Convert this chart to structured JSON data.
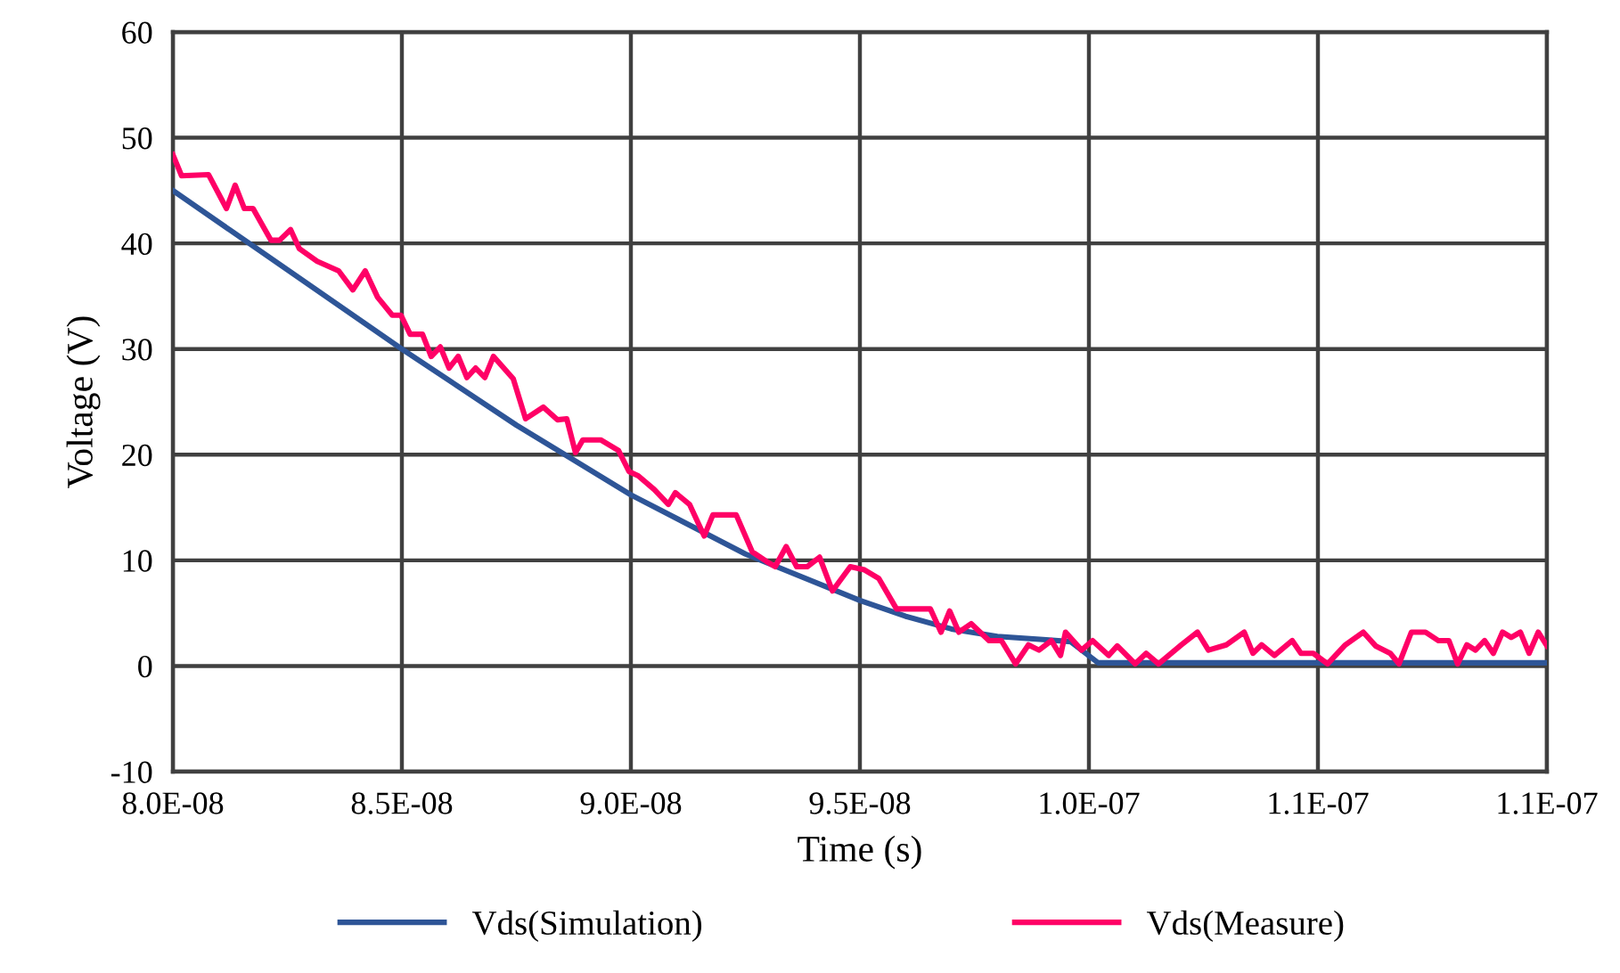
{
  "chart_data": {
    "type": "line",
    "xlabel": "Time (s)",
    "ylabel": "Voltage (V)",
    "xlim": [
      8e-08,
      1.1e-07
    ],
    "ylim": [
      -10,
      60
    ],
    "xticks": [
      {
        "value": 8e-08,
        "label": "8.0E-08"
      },
      {
        "value": 8.5e-08,
        "label": "8.5E-08"
      },
      {
        "value": 9e-08,
        "label": "9.0E-08"
      },
      {
        "value": 9.5e-08,
        "label": "9.5E-08"
      },
      {
        "value": 1e-07,
        "label": "1.0E-07"
      },
      {
        "value": 1.05e-07,
        "label": "1.1E-07"
      },
      {
        "value": 1.1e-07,
        "label": "1.1E-07"
      }
    ],
    "yticks": [
      -10,
      0,
      10,
      20,
      30,
      40,
      50,
      60
    ],
    "grid": true,
    "legend": "bottom",
    "marker": "none",
    "line_style": "solid",
    "series": [
      {
        "name": "Vds(Simulation)",
        "color": "#2e5597",
        "x": [
          8e-08,
          8.25e-08,
          8.5e-08,
          8.75e-08,
          9e-08,
          9.25e-08,
          9.5e-08,
          9.6e-08,
          9.7e-08,
          9.8e-08,
          9.9e-08,
          9.96e-08,
          1.002e-07,
          1.1e-07
        ],
        "values": [
          45,
          37.5,
          30,
          22.8,
          16.2,
          10.6,
          6.2,
          4.7,
          3.5,
          2.8,
          2.5,
          2.3,
          0.3,
          0.3
        ]
      },
      {
        "name": "Vds(Measure)",
        "color": "#ff0066",
        "x": [
          8e-08,
          8.019e-08,
          8.078e-08,
          8.117e-08,
          8.136e-08,
          8.156e-08,
          8.175e-08,
          8.214e-08,
          8.233e-08,
          8.257e-08,
          8.276e-08,
          8.315e-08,
          8.362e-08,
          8.393e-08,
          8.42e-08,
          8.447e-08,
          8.479e-08,
          8.498e-08,
          8.518e-08,
          8.545e-08,
          8.564e-08,
          8.584e-08,
          8.603e-08,
          8.623e-08,
          8.642e-08,
          8.661e-08,
          8.681e-08,
          8.7e-08,
          8.743e-08,
          8.77e-08,
          8.809e-08,
          8.84e-08,
          8.86e-08,
          8.879e-08,
          8.895e-08,
          8.934e-08,
          8.973e-08,
          8.996e-08,
          9.016e-08,
          9.051e-08,
          9.082e-08,
          9.097e-08,
          9.128e-08,
          9.16e-08,
          9.179e-08,
          9.23e-08,
          9.265e-08,
          9.296e-08,
          9.315e-08,
          9.339e-08,
          9.362e-08,
          9.385e-08,
          9.412e-08,
          9.44e-08,
          9.479e-08,
          9.51e-08,
          9.541e-08,
          9.58e-08,
          9.654e-08,
          9.677e-08,
          9.696e-08,
          9.716e-08,
          9.743e-08,
          9.782e-08,
          9.809e-08,
          9.84e-08,
          9.868e-08,
          9.891e-08,
          9.918e-08,
          9.938e-08,
          9.949e-08,
          9.984e-08,
          1.0008e-07,
          1.0043e-07,
          1.0062e-07,
          1.0101e-07,
          1.0125e-07,
          1.0152e-07,
          1.0202e-07,
          1.0237e-07,
          1.0261e-07,
          1.03e-07,
          1.0339e-07,
          1.0358e-07,
          1.0377e-07,
          1.0405e-07,
          1.0444e-07,
          1.0463e-07,
          1.049e-07,
          1.0521e-07,
          1.056e-07,
          1.0599e-07,
          1.0626e-07,
          1.0658e-07,
          1.0677e-07,
          1.0704e-07,
          1.0735e-07,
          1.0763e-07,
          1.0786e-07,
          1.0805e-07,
          1.0825e-07,
          1.0844e-07,
          1.0864e-07,
          1.0883e-07,
          1.0903e-07,
          1.0922e-07,
          1.0942e-07,
          1.0961e-07,
          1.0981e-07,
          1.1e-07
        ],
        "values": [
          48.4,
          46.4,
          46.5,
          43.3,
          45.5,
          43.3,
          43.3,
          40.3,
          40.3,
          41.3,
          39.5,
          38.3,
          37.4,
          35.6,
          37.4,
          34.9,
          33.2,
          33.2,
          31.4,
          31.4,
          29.3,
          30.2,
          28.2,
          29.3,
          27.3,
          28.2,
          27.3,
          29.3,
          27.2,
          23.4,
          24.5,
          23.3,
          23.4,
          20.2,
          21.4,
          21.4,
          20.4,
          18.4,
          18.0,
          16.7,
          15.3,
          16.4,
          15.3,
          12.3,
          14.3,
          14.3,
          10.8,
          9.9,
          9.4,
          11.3,
          9.4,
          9.4,
          10.3,
          7.1,
          9.4,
          9.1,
          8.3,
          5.4,
          5.4,
          3.2,
          5.2,
          3.2,
          4.0,
          2.4,
          2.4,
          0.2,
          2.0,
          1.5,
          2.4,
          1.0,
          3.2,
          1.5,
          2.4,
          1.0,
          1.9,
          0.2,
          1.2,
          0.2,
          2.0,
          3.2,
          1.5,
          2.0,
          3.2,
          1.2,
          2.0,
          1.0,
          2.4,
          1.2,
          1.2,
          0.2,
          2.0,
          3.2,
          1.9,
          1.2,
          0.2,
          3.2,
          3.2,
          2.4,
          2.4,
          0.2,
          2.0,
          1.5,
          2.4,
          1.2,
          3.2,
          2.7,
          3.2,
          1.2,
          3.2,
          1.9
        ]
      }
    ]
  }
}
